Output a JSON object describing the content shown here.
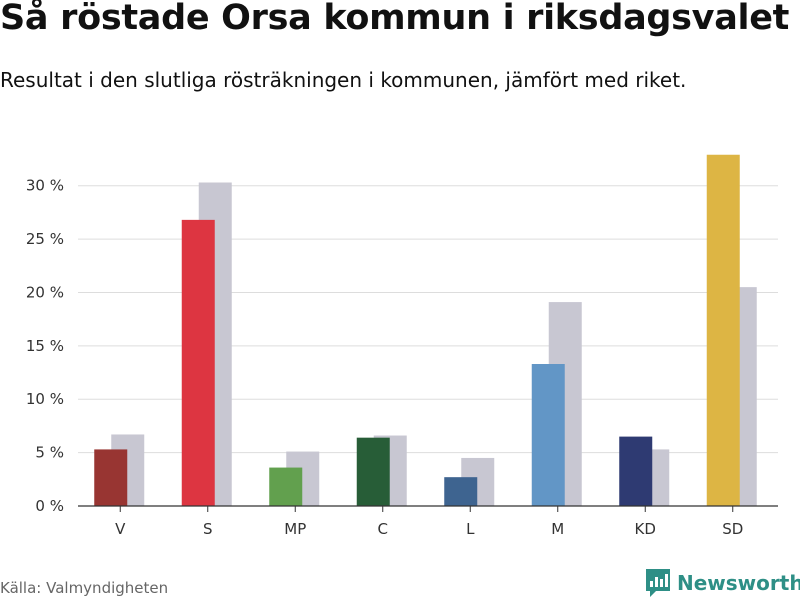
{
  "title": "Så röstade Orsa kommun i riksdagsvalet",
  "subtitle": "Resultat i den slutliga rösträkningen i kommunen, jämfört med riket.",
  "source": "Källa: Valmyndigheten",
  "brand": {
    "name": "Newsworthy",
    "color": "#2e8f86"
  },
  "chart_data": {
    "type": "bar",
    "categories": [
      "V",
      "S",
      "MP",
      "C",
      "L",
      "M",
      "KD",
      "SD"
    ],
    "series": [
      {
        "name": "Orsa kommun",
        "values": [
          5.3,
          26.8,
          3.6,
          6.4,
          2.7,
          13.3,
          6.5,
          32.9
        ],
        "colors": [
          "#983532",
          "#dd3541",
          "#62a04e",
          "#275d37",
          "#3e6490",
          "#6296c6",
          "#2e3a72",
          "#ddb544"
        ]
      },
      {
        "name": "Riket",
        "values": [
          6.7,
          30.3,
          5.1,
          6.6,
          4.5,
          19.1,
          5.3,
          20.5
        ],
        "color": "#c8c7d2"
      }
    ],
    "yticks": [
      "0 %",
      "5 %",
      "10 %",
      "15 %",
      "20 %",
      "25 %",
      "30 %"
    ],
    "ytick_values": [
      0,
      5,
      10,
      15,
      20,
      25,
      30
    ],
    "ylim": [
      0,
      34
    ],
    "grid": true,
    "xlabel": "",
    "ylabel": ""
  }
}
